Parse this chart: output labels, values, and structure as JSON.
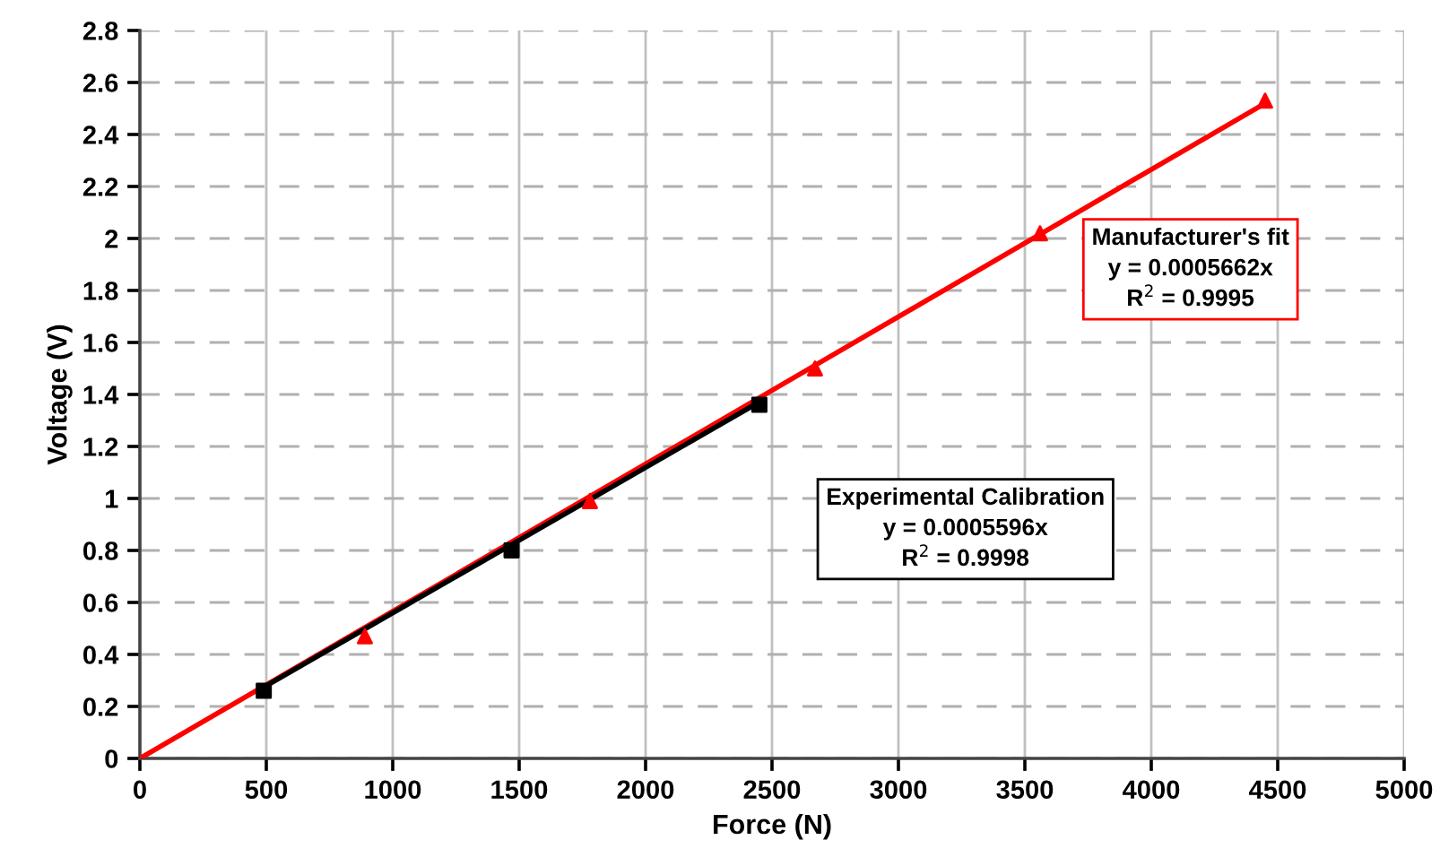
{
  "chart_data": {
    "type": "scatter",
    "xlabel": "Force (N)",
    "ylabel": "Voltage (V)",
    "xlim": [
      0,
      5000
    ],
    "xticks": [
      0,
      500,
      1000,
      1500,
      2000,
      2500,
      3000,
      3500,
      4000,
      4500,
      5000
    ],
    "ylim": [
      0,
      2.8
    ],
    "yticks": [
      0,
      0.2,
      0.4,
      0.6,
      0.8,
      1,
      1.2,
      1.4,
      1.6,
      1.8,
      2,
      2.2,
      2.4,
      2.6,
      2.8
    ],
    "grid": true,
    "legend": false,
    "series": [
      {
        "type": "line",
        "color": "#ff0000",
        "x": [
          0,
          4450
        ],
        "values": [
          0,
          2.52
        ],
        "marker": "none"
      },
      {
        "type": "line",
        "color": "#000000",
        "x": [
          490,
          2450
        ],
        "values": [
          0.274,
          1.371
        ],
        "marker": "none"
      },
      {
        "color": "#ff0000",
        "x": [
          890,
          1780,
          2670,
          3560,
          4450
        ],
        "values": [
          0.47,
          0.99,
          1.5,
          2.02,
          2.53
        ],
        "marker": "triangle"
      },
      {
        "color": "#000000",
        "x": [
          490,
          1470,
          2450
        ],
        "values": [
          0.26,
          0.8,
          1.36
        ],
        "marker": "square"
      }
    ],
    "annotations": [
      "Experimental Calibration\ny = 0.0005596x\nR$^{2}$ = 0.9998",
      "Manufacturer's fit\ny = 0.0005662x\nR$^{2}$ = 0.9995"
    ]
  }
}
